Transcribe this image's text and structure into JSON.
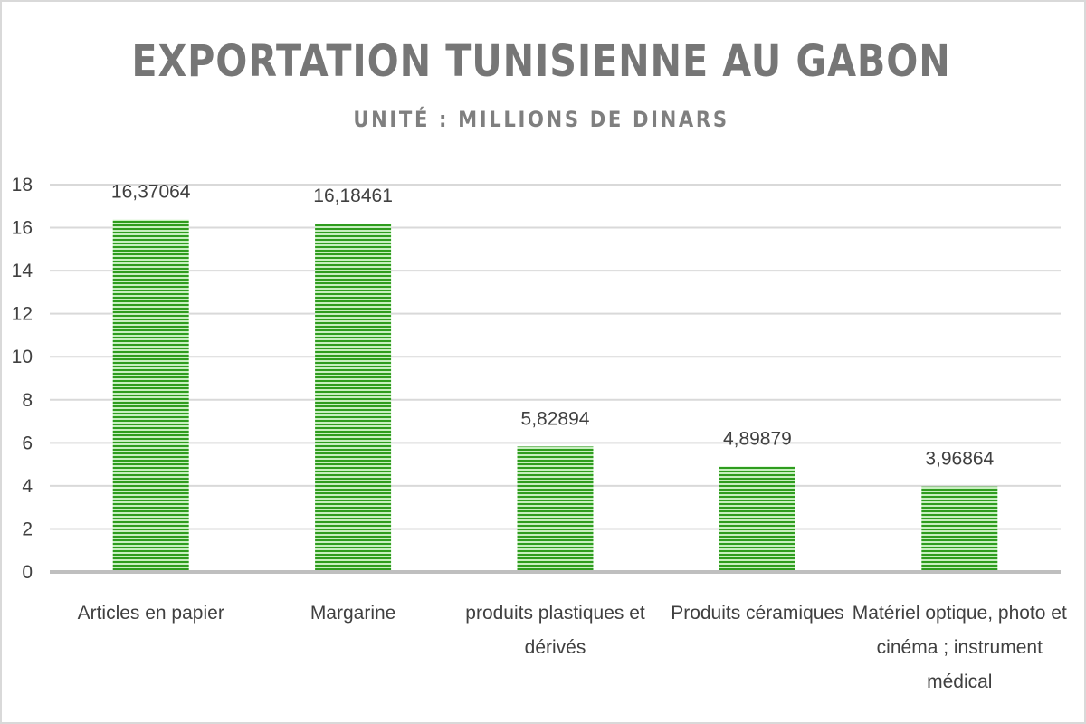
{
  "chart_data": {
    "type": "bar",
    "title": "EXPORTATION TUNISIENNE AU GABON",
    "subtitle": "UNITÉ : MILLIONS DE DINARS",
    "categories": [
      "Articles en papier",
      "Margarine",
      "produits plastiques et dérivés",
      "Produits céramiques",
      "Matériel optique, photo et cinéma ; instrument médical"
    ],
    "category_lines": [
      [
        "Articles en papier"
      ],
      [
        "Margarine"
      ],
      [
        "produits plastiques et",
        "dérivés"
      ],
      [
        "Produits céramiques"
      ],
      [
        "Matériel optique, photo et",
        "cinéma ; instrument",
        "médical"
      ]
    ],
    "values": [
      16.37064,
      16.18461,
      5.82894,
      4.89879,
      3.96864
    ],
    "data_labels": [
      "16,37064",
      "16,18461",
      "5,82894",
      "4,89879",
      "3,96864"
    ],
    "ylim": [
      0,
      18
    ],
    "yticks": [
      0,
      2,
      4,
      6,
      8,
      10,
      12,
      14,
      16,
      18
    ],
    "grid": true,
    "legend": "none",
    "colors": {
      "bar_dark": "#2e9c1e",
      "bar_light": "#c8efc0",
      "gridline": "#d9d9d9",
      "axis": "#bfbfbf",
      "title": "#767676"
    }
  }
}
